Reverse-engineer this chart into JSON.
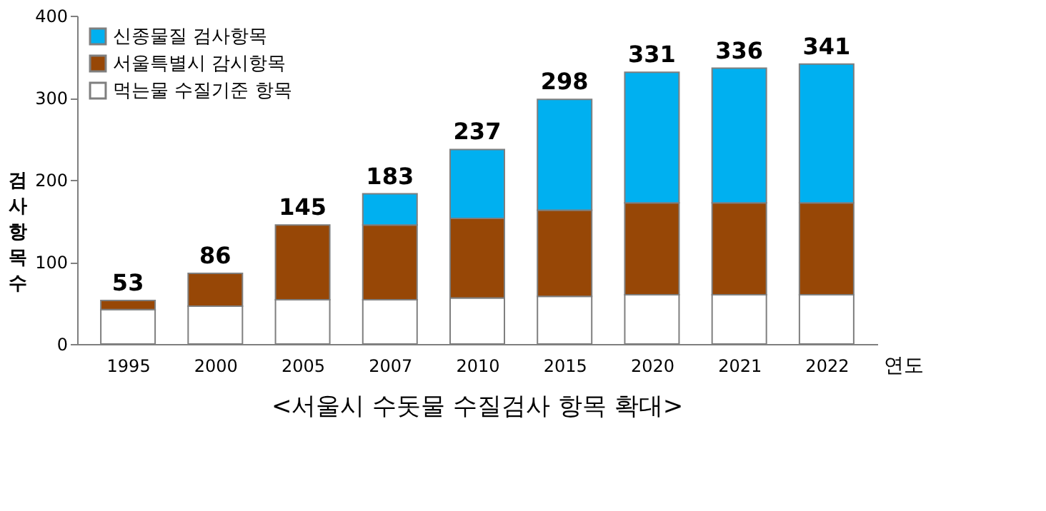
{
  "chart_data": {
    "type": "bar",
    "title": "<서울시 수돗물 수질검사 항목 확대>",
    "xlabel": "연도",
    "ylabel": "검사 항목 수",
    "categories": [
      "1995",
      "2000",
      "2005",
      "2007",
      "2010",
      "2015",
      "2020",
      "2021",
      "2022"
    ],
    "stacked": true,
    "series": [
      {
        "name": "먹는물 수질기준 항목",
        "color": "#ffffff",
        "values": [
          42,
          46,
          54,
          54,
          56,
          58,
          60,
          60,
          60
        ]
      },
      {
        "name": "서울특별시 감시항목",
        "color": "#974706",
        "values": [
          11,
          40,
          91,
          91,
          97,
          105,
          112,
          112,
          112
        ]
      },
      {
        "name": "신종물질 검사항목",
        "color": "#00b0f0",
        "values": [
          null,
          null,
          null,
          38,
          84,
          135,
          159,
          164,
          169
        ]
      }
    ],
    "totals": [
      "53",
      "86",
      "145",
      "183",
      "237",
      "298",
      "331",
      "336",
      "341"
    ],
    "ylim": [
      0,
      400
    ],
    "yticks": [
      0,
      100,
      200,
      300,
      400
    ],
    "grid": false,
    "legend": "top left"
  }
}
